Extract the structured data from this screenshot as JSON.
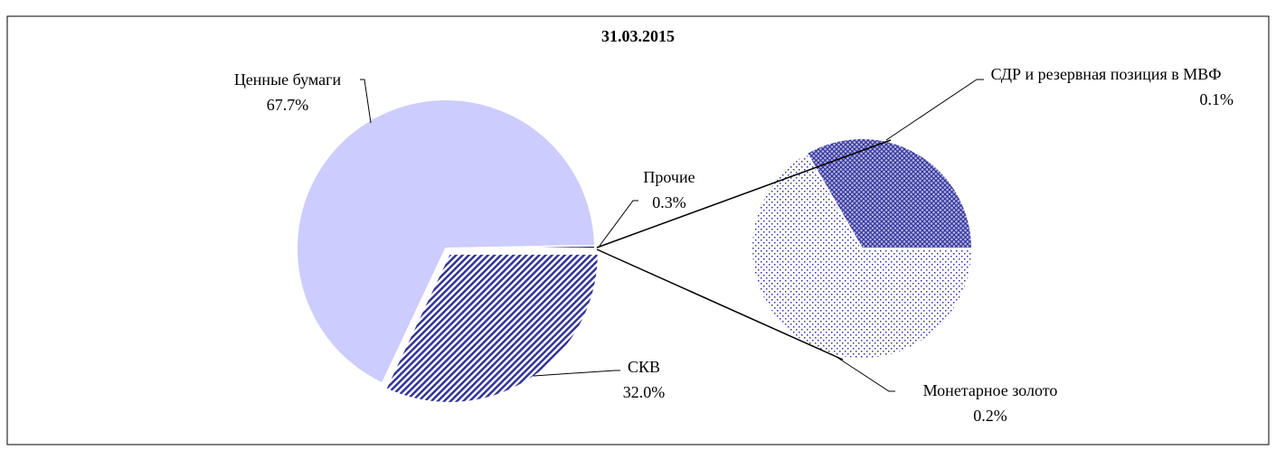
{
  "chart_data": {
    "type": "pie-of-pie",
    "title": "31.03.2015",
    "categories": [
      "Ценные бумаги",
      "СКВ",
      "Прочие"
    ],
    "values": [
      67.7,
      32.0,
      0.3
    ],
    "value_labels": [
      "67.7%",
      "32.0%",
      "0.3%"
    ],
    "colors": [
      "#ccccff",
      "#333399",
      "#000080"
    ],
    "secondary": {
      "categories": [
        "СДР и резервная позиция в МВФ",
        "Монетарное золото"
      ],
      "values": [
        0.1,
        0.2
      ],
      "value_labels": [
        "0.1%",
        "0.2%"
      ],
      "colors": [
        "#333399",
        "#333399"
      ]
    }
  }
}
